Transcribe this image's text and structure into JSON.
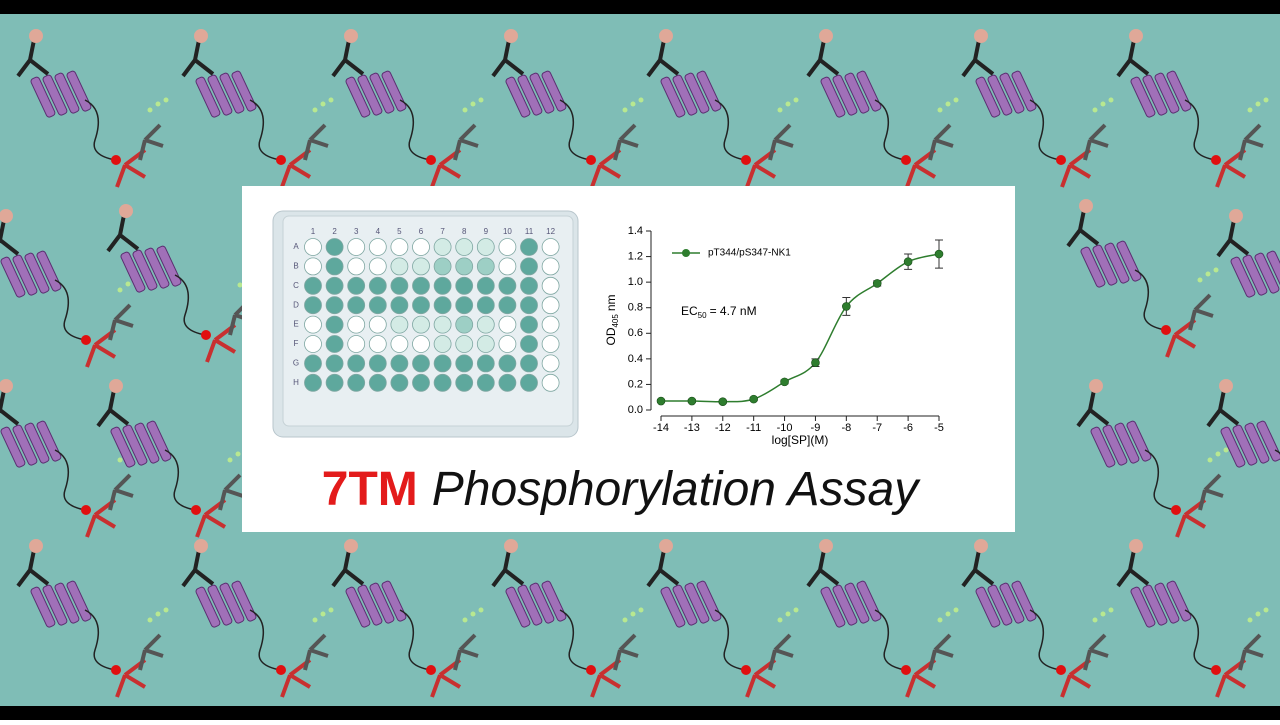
{
  "title": {
    "highlight": "7TM",
    "rest": "Phosphorylation Assay"
  },
  "plate": {
    "columns": [
      "1",
      "2",
      "3",
      "4",
      "5",
      "6",
      "7",
      "8",
      "9",
      "10",
      "11",
      "12"
    ],
    "rows": [
      "A",
      "B",
      "C",
      "D",
      "E",
      "F",
      "G",
      "H"
    ]
  },
  "chart_data": {
    "type": "scatter",
    "x_label": "log[SP](M)",
    "y_label": {
      "main": "OD",
      "sub": "405",
      "unit": "nm"
    },
    "annotation": {
      "main": "EC",
      "sub": "50",
      "rest": "= 4.7 nM"
    },
    "x": [
      -14,
      -13,
      -12,
      -11,
      -10,
      -9,
      -8,
      -7,
      -6,
      -5
    ],
    "series": [
      {
        "name": "pT344/pS347-NK1",
        "color": "#2e7d2e",
        "values": [
          0.07,
          0.07,
          0.065,
          0.085,
          0.22,
          0.37,
          0.81,
          0.99,
          1.16,
          1.22
        ],
        "errors": [
          0.01,
          0.01,
          0.01,
          0.01,
          0.015,
          0.03,
          0.07,
          0.02,
          0.06,
          0.11
        ]
      }
    ],
    "xlim": [
      -14,
      -5
    ],
    "ylim": [
      0,
      1.4
    ],
    "xticks": [
      -14,
      -13,
      -12,
      -11,
      -10,
      -9,
      -8,
      -7,
      -6,
      -5
    ],
    "yticks": [
      {
        "value": 0,
        "label": "0.0"
      },
      0.2,
      0.4,
      0.6,
      0.8,
      {
        "value": 1,
        "label": "1.0"
      },
      1.2,
      1.4
    ]
  }
}
